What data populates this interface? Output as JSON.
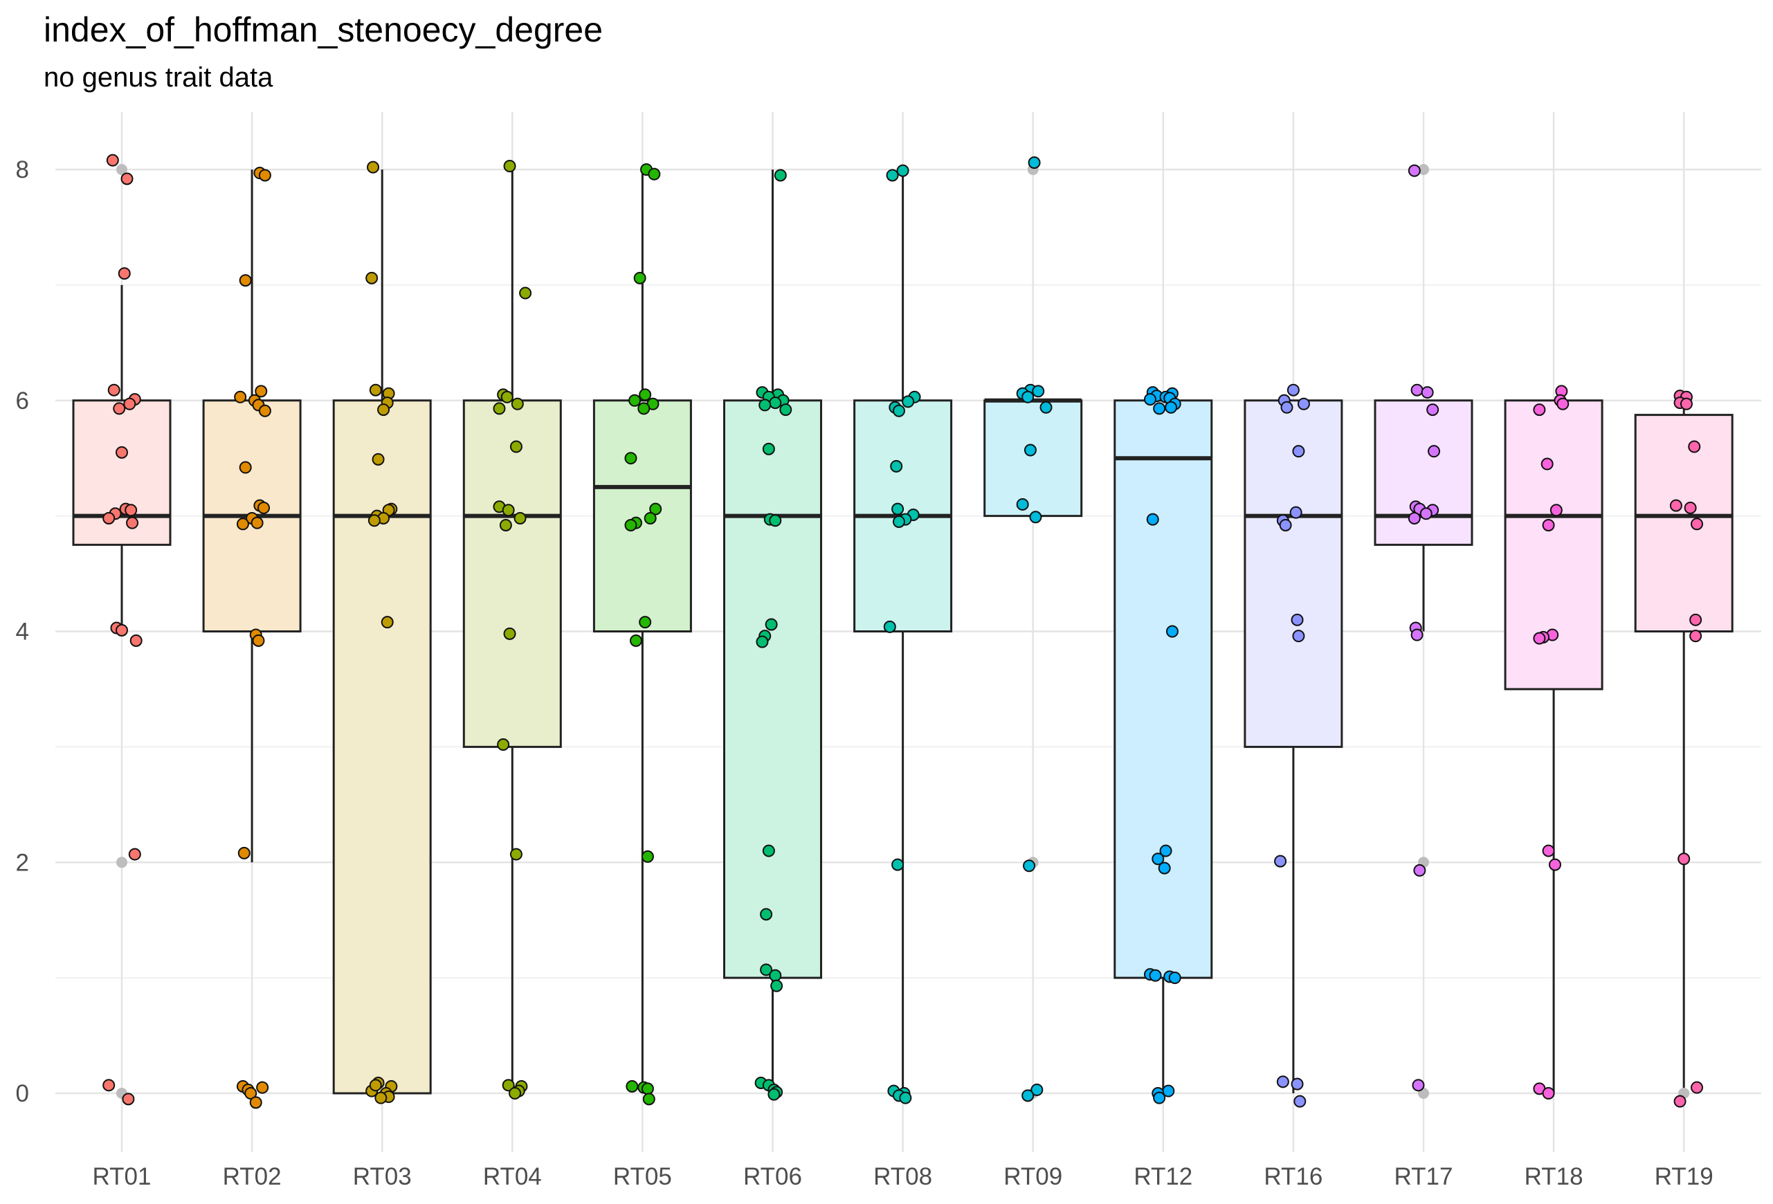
{
  "chart_data": {
    "type": "box",
    "title": "index_of_hoffman_stenoecy_degree",
    "subtitle": "no genus trait data",
    "xlabel": "",
    "ylabel": "",
    "ylim": [
      -0.95,
      8.5
    ],
    "y_ticks": [
      0,
      2,
      4,
      6,
      8
    ],
    "grid": true,
    "categories": [
      "RT01",
      "RT02",
      "RT03",
      "RT04",
      "RT05",
      "RT06",
      "RT08",
      "RT09",
      "RT12",
      "RT16",
      "RT17",
      "RT18",
      "RT19"
    ],
    "colors": [
      "#F8766D",
      "#E18A00",
      "#BE9C00",
      "#8CAB00",
      "#24B700",
      "#00BE70",
      "#00C1AB",
      "#00BBDA",
      "#00ACFC",
      "#8B93FF",
      "#D575FE",
      "#F962DD",
      "#FF65AC"
    ],
    "outlier_color": "#bdbdbd",
    "boxes": [
      {
        "name": "RT01",
        "q1": 4.75,
        "median": 5.0,
        "q3": 6.0,
        "whisker_low": 4.0,
        "whisker_high": 7.0,
        "outliers": [
          8,
          2,
          0
        ]
      },
      {
        "name": "RT02",
        "q1": 4.0,
        "median": 5.0,
        "q3": 6.0,
        "whisker_low": 2.0,
        "whisker_high": 8.0,
        "outliers": []
      },
      {
        "name": "RT03",
        "q1": 0.0,
        "median": 5.0,
        "q3": 6.0,
        "whisker_low": 0.0,
        "whisker_high": 8.0,
        "outliers": []
      },
      {
        "name": "RT04",
        "q1": 3.0,
        "median": 5.0,
        "q3": 6.0,
        "whisker_low": 0.0,
        "whisker_high": 8.0,
        "outliers": []
      },
      {
        "name": "RT05",
        "q1": 4.0,
        "median": 5.25,
        "q3": 6.0,
        "whisker_low": 0.0,
        "whisker_high": 8.0,
        "outliers": []
      },
      {
        "name": "RT06",
        "q1": 1.0,
        "median": 5.0,
        "q3": 6.0,
        "whisker_low": 0.0,
        "whisker_high": 8.0,
        "outliers": []
      },
      {
        "name": "RT08",
        "q1": 4.0,
        "median": 5.0,
        "q3": 6.0,
        "whisker_low": 0.0,
        "whisker_high": 8.0,
        "outliers": []
      },
      {
        "name": "RT09",
        "q1": 5.0,
        "median": 6.0,
        "q3": 6.0,
        "whisker_low": 5.0,
        "whisker_high": 6.0,
        "outliers": [
          8,
          2,
          0
        ]
      },
      {
        "name": "RT12",
        "q1": 1.0,
        "median": 5.5,
        "q3": 6.0,
        "whisker_low": 0.0,
        "whisker_high": 6.0,
        "outliers": []
      },
      {
        "name": "RT16",
        "q1": 3.0,
        "median": 5.0,
        "q3": 6.0,
        "whisker_low": 0.0,
        "whisker_high": 6.0,
        "outliers": []
      },
      {
        "name": "RT17",
        "q1": 4.75,
        "median": 5.0,
        "q3": 6.0,
        "whisker_low": 4.0,
        "whisker_high": 6.0,
        "outliers": [
          8,
          2,
          0
        ]
      },
      {
        "name": "RT18",
        "q1": 3.5,
        "median": 5.0,
        "q3": 6.0,
        "whisker_low": 0.0,
        "whisker_high": 6.0,
        "outliers": []
      },
      {
        "name": "RT19",
        "q1": 4.0,
        "median": 5.0,
        "q3": 5.875,
        "whisker_low": 0.0,
        "whisker_high": 6.0,
        "outliers": [
          0
        ]
      }
    ],
    "points": [
      [
        8.08,
        7.92,
        7.1,
        6.09,
        6.01,
        5.97,
        5.93,
        5.55,
        5.06,
        5.05,
        5.02,
        4.98,
        4.94,
        4.03,
        4.01,
        3.92,
        2.07,
        0.07,
        -0.05
      ],
      [
        7.97,
        7.95,
        7.04,
        6.08,
        6.03,
        6.0,
        5.96,
        5.91,
        5.42,
        5.09,
        5.07,
        4.98,
        4.94,
        4.93,
        3.97,
        3.92,
        2.08,
        0.06,
        0.03,
        0.0,
        -0.08,
        0.05
      ],
      [
        8.02,
        7.06,
        6.09,
        6.06,
        5.98,
        5.92,
        5.49,
        5.06,
        5.05,
        5.0,
        4.98,
        4.96,
        4.08,
        0.09,
        0.06,
        0.02,
        0.0,
        -0.03,
        -0.04,
        0.07
      ],
      [
        8.03,
        6.93,
        6.05,
        6.03,
        5.97,
        5.93,
        5.6,
        5.08,
        5.05,
        4.98,
        4.92,
        3.98,
        3.02,
        2.07,
        0.07,
        0.06,
        0.02,
        0.0
      ],
      [
        8.0,
        7.96,
        7.06,
        6.05,
        6.0,
        5.97,
        5.93,
        5.5,
        5.06,
        4.98,
        4.94,
        4.92,
        4.08,
        3.92,
        2.05,
        0.06,
        0.05,
        0.04,
        -0.05
      ],
      [
        7.95,
        6.07,
        6.05,
        6.03,
        6.0,
        5.98,
        5.96,
        5.92,
        5.58,
        4.97,
        4.96,
        4.06,
        3.96,
        3.91,
        2.1,
        1.55,
        1.07,
        1.02,
        0.93,
        0.09,
        0.07,
        0.03,
        0.01,
        -0.01
      ],
      [
        7.99,
        7.95,
        6.03,
        5.99,
        5.94,
        5.91,
        5.43,
        5.06,
        5.01,
        4.97,
        4.95,
        4.04,
        1.98,
        0.02,
        0.0,
        -0.02,
        -0.04
      ],
      [
        8.06,
        6.09,
        6.08,
        6.06,
        6.03,
        5.94,
        5.57,
        5.1,
        4.99,
        1.97,
        0.03,
        -0.02
      ],
      [
        6.07,
        6.06,
        6.04,
        6.03,
        6.02,
        6.01,
        5.97,
        5.94,
        5.93,
        4.97,
        4.0,
        2.1,
        2.03,
        1.95,
        1.03,
        1.02,
        1.01,
        1.0,
        0.02,
        0.0,
        -0.04
      ],
      [
        6.09,
        6.0,
        5.97,
        5.94,
        5.56,
        5.03,
        4.96,
        4.92,
        4.1,
        3.96,
        2.01,
        0.1,
        0.08,
        -0.07
      ],
      [
        7.99,
        6.09,
        6.07,
        5.92,
        5.56,
        5.08,
        5.06,
        5.05,
        5.02,
        4.98,
        4.03,
        3.97,
        1.93,
        0.07
      ],
      [
        6.08,
        6.0,
        5.97,
        5.92,
        5.45,
        5.05,
        4.92,
        3.97,
        3.95,
        3.94,
        2.1,
        1.98,
        0.04,
        0.0
      ],
      [
        6.04,
        6.03,
        5.98,
        5.97,
        5.6,
        5.09,
        5.07,
        4.93,
        4.1,
        3.96,
        2.03,
        0.05,
        -0.07
      ]
    ],
    "jitter_x": [
      [
        -0.07,
        0.04,
        0.02,
        -0.06,
        0.1,
        0.06,
        -0.02,
        0.0,
        0.03,
        0.07,
        -0.05,
        -0.1,
        0.08,
        -0.04,
        0.0,
        0.11,
        0.1,
        -0.1,
        0.05
      ],
      [
        0.06,
        0.1,
        -0.05,
        0.07,
        -0.09,
        0.02,
        0.05,
        0.1,
        -0.05,
        0.06,
        0.09,
        0.0,
        0.04,
        -0.07,
        0.03,
        0.05,
        -0.06,
        -0.07,
        -0.03,
        -0.01,
        0.03,
        0.08
      ],
      [
        -0.07,
        -0.08,
        -0.05,
        0.05,
        0.04,
        0.01,
        -0.03,
        0.07,
        0.05,
        -0.04,
        0.01,
        -0.06,
        0.04,
        -0.03,
        0.07,
        -0.08,
        0.03,
        0.05,
        -0.01,
        -0.05
      ],
      [
        -0.02,
        0.1,
        -0.07,
        -0.04,
        0.04,
        -0.1,
        0.03,
        -0.1,
        -0.03,
        0.06,
        -0.05,
        -0.02,
        -0.07,
        0.03,
        -0.03,
        0.07,
        0.05,
        0.02
      ],
      [
        0.03,
        0.09,
        -0.02,
        0.02,
        -0.06,
        0.08,
        0.01,
        -0.09,
        0.1,
        0.06,
        -0.05,
        -0.09,
        0.02,
        -0.05,
        0.04,
        -0.08,
        0.01,
        0.04,
        0.05
      ],
      [
        0.06,
        -0.08,
        0.04,
        -0.03,
        0.08,
        0.02,
        -0.06,
        0.1,
        -0.03,
        -0.02,
        0.02,
        -0.01,
        -0.06,
        -0.08,
        -0.03,
        -0.05,
        -0.05,
        0.02,
        0.03,
        -0.09,
        -0.03,
        0.01,
        0.03,
        0.01
      ],
      [
        0.0,
        -0.08,
        0.09,
        0.04,
        -0.06,
        -0.03,
        -0.05,
        -0.04,
        0.08,
        0.02,
        -0.03,
        -0.1,
        -0.04,
        -0.07,
        0.01,
        -0.03,
        0.02
      ],
      [
        0.01,
        -0.02,
        0.04,
        -0.08,
        -0.04,
        0.1,
        -0.02,
        -0.08,
        0.02,
        -0.03,
        0.03,
        -0.04
      ],
      [
        -0.08,
        0.07,
        -0.05,
        0.02,
        0.05,
        -0.1,
        0.09,
        0.06,
        -0.03,
        -0.08,
        0.07,
        0.02,
        -0.04,
        0.01,
        -0.1,
        -0.06,
        0.05,
        0.09,
        0.04,
        -0.04,
        -0.03
      ],
      [
        0.0,
        -0.07,
        0.08,
        -0.05,
        0.04,
        0.02,
        -0.08,
        -0.06,
        0.03,
        0.04,
        -0.1,
        -0.08,
        0.03,
        0.05
      ],
      [
        -0.07,
        -0.05,
        0.03,
        0.07,
        0.08,
        -0.06,
        -0.03,
        0.07,
        0.02,
        -0.07,
        -0.06,
        -0.05,
        -0.03,
        -0.04
      ],
      [
        0.06,
        0.05,
        0.07,
        -0.11,
        -0.05,
        0.02,
        -0.04,
        -0.01,
        -0.08,
        -0.11,
        -0.04,
        0.01,
        -0.11,
        -0.04
      ],
      [
        -0.03,
        0.02,
        -0.03,
        0.02,
        0.08,
        -0.06,
        0.05,
        0.1,
        0.09,
        0.09,
        0.0,
        0.1,
        -0.03
      ]
    ]
  }
}
